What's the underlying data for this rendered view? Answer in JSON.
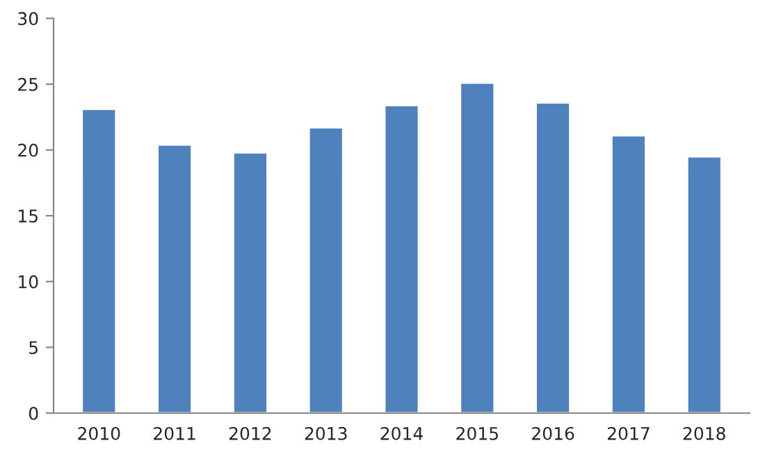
{
  "chart_data": {
    "type": "bar",
    "categories": [
      "2010",
      "2011",
      "2012",
      "2013",
      "2014",
      "2015",
      "2016",
      "2017",
      "2018"
    ],
    "values": [
      23.1,
      20.4,
      19.8,
      21.7,
      23.4,
      25.1,
      23.6,
      21.1,
      19.5
    ],
    "color": "#4f81bd",
    "ylim": [
      0,
      30
    ],
    "yticks": [
      0,
      5,
      10,
      15,
      20,
      25,
      30
    ],
    "grid": false,
    "legend": false
  }
}
